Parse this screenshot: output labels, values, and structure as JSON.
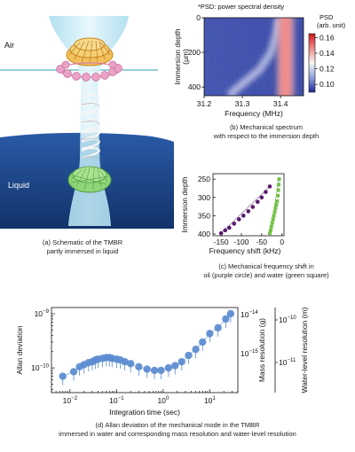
{
  "schematic": {
    "label_air": "Air",
    "label_liquid": "Liquid",
    "caption_line1": "(a) Schematic of the TMBR",
    "caption_line2": "partly immersed in liquid",
    "colors": {
      "liquid": "#1f4b8f",
      "fiber": "#bfe6f3",
      "rings": "#e9a6c9",
      "helix": "#e8e8e8",
      "coil": "#7cc96a",
      "top": "#e5a93b"
    }
  },
  "panel_b": {
    "note": "*PSD: power spectral density",
    "caption_line1": "(b) Mechanical spectrum",
    "caption_line2": "with respect to the immersion depth",
    "colorbar_title_1": "PSD",
    "colorbar_title_2": "(arb. unit)",
    "colorbar_ticks": [
      "0.16",
      "0.14",
      "0.12",
      "0.10"
    ]
  },
  "panel_c": {
    "caption_line1": "(c) Mechanical frequency shift in",
    "caption_line2": "oil (purple circle) and water (green square)"
  },
  "panel_d": {
    "caption_line1": "(d) Allan deviation of the mechanical mode in the TMBR",
    "caption_line2": "immersed in water and corresponding mass resolution and water-level resolution"
  },
  "chart_data": [
    {
      "type": "heatmap",
      "xlabel": "Frequency (MHz)",
      "ylabel_1": "Immersion depth",
      "ylabel_2": "(μm)",
      "x_ticks": [
        "31.2",
        "31.3",
        "31.4"
      ],
      "y_ticks": [
        "0",
        "200",
        "400"
      ],
      "xlim": [
        31.2,
        31.46
      ],
      "ylim": [
        0,
        450
      ],
      "colorbar_range": [
        0.09,
        0.165
      ],
      "ridge_curve": {
        "depth": [
          0,
          100,
          200,
          300,
          400,
          450
        ],
        "frequency": [
          31.395,
          31.388,
          31.375,
          31.345,
          31.29,
          31.265
        ]
      },
      "main_peak": {
        "frequency": 31.413,
        "depth_range": [
          0,
          450
        ]
      }
    },
    {
      "type": "scatter",
      "xlabel": "Frequency shift (kHz)",
      "ylabel": "Immersion depth",
      "x_ticks": [
        "-150",
        "-100",
        "-50",
        "0"
      ],
      "y_ticks": [
        "250",
        "300",
        "350",
        "400"
      ],
      "xlim": [
        -170,
        5
      ],
      "ylim": [
        235,
        405
      ],
      "series": [
        {
          "color": "#5a1a6e",
          "marker": "circle",
          "x": [
            -150,
            -140,
            -130,
            -118,
            -106,
            -95,
            -83,
            -72,
            -60,
            -50,
            -40,
            -30
          ],
          "depth": [
            398,
            390,
            383,
            372,
            360,
            350,
            338,
            326,
            312,
            300,
            285,
            270
          ]
        },
        {
          "color": "#74c04a",
          "marker": "square",
          "x": [
            -30,
            -28,
            -26,
            -24,
            -22,
            -20,
            -18,
            -16,
            -14,
            -12,
            -10,
            -9,
            -8,
            -7
          ],
          "depth": [
            398,
            390,
            380,
            370,
            360,
            350,
            340,
            330,
            320,
            310,
            295,
            280,
            265,
            250
          ]
        }
      ]
    },
    {
      "type": "scatter",
      "xlabel": "Integration time (sec)",
      "ylabel": "Allan deviation",
      "ylabel_right1": "Mass resolution (g)",
      "ylabel_right2": "Water-level resolution (m)",
      "x_ticks": [
        {
          "value": 0.01,
          "label": "10",
          "sup": "−2"
        },
        {
          "value": 0.1,
          "label": "10",
          "sup": "−1"
        },
        {
          "value": 1,
          "label": "10",
          "sup": "0"
        },
        {
          "value": 10,
          "label": "10",
          "sup": "1"
        }
      ],
      "y_ticks": [
        {
          "value": 1e-10,
          "label": "10",
          "sup": "−10"
        },
        {
          "value": 1e-09,
          "label": "10",
          "sup": "−9"
        }
      ],
      "right1_ticks": [
        {
          "label": "10",
          "sup": "−15"
        },
        {
          "label": "10",
          "sup": "−14"
        }
      ],
      "right2_ticks": [
        {
          "label": "10",
          "sup": "−11"
        },
        {
          "label": "10",
          "sup": "−10"
        }
      ],
      "x_scale": "log",
      "y_scale": "log",
      "xlim": [
        0.004,
        40
      ],
      "ylim": [
        3.5e-11,
        1.3e-09
      ],
      "series": [
        {
          "color": "#5b8bd0",
          "x": [
            0.007,
            0.012,
            0.016,
            0.02,
            0.025,
            0.03,
            0.035,
            0.04,
            0.05,
            0.06,
            0.07,
            0.08,
            0.1,
            0.12,
            0.15,
            0.2,
            0.3,
            0.45,
            0.65,
            0.9,
            1.3,
            1.8,
            2.5,
            3.5,
            5,
            7,
            10,
            15,
            22,
            28
          ],
          "y": [
            7e-11,
            8.5e-11,
            1.05e-10,
            1.15e-10,
            1.25e-10,
            1.3e-10,
            1.4e-10,
            1.45e-10,
            1.5e-10,
            1.55e-10,
            1.55e-10,
            1.5e-10,
            1.45e-10,
            1.4e-10,
            1.3e-10,
            1.2e-10,
            1.05e-10,
            9.5e-11,
            9e-11,
            9e-11,
            1e-10,
            1.1e-10,
            1.3e-10,
            1.7e-10,
            2.2e-10,
            3e-10,
            4.3e-10,
            5.5e-10,
            8e-10,
            1e-09
          ]
        }
      ]
    }
  ]
}
